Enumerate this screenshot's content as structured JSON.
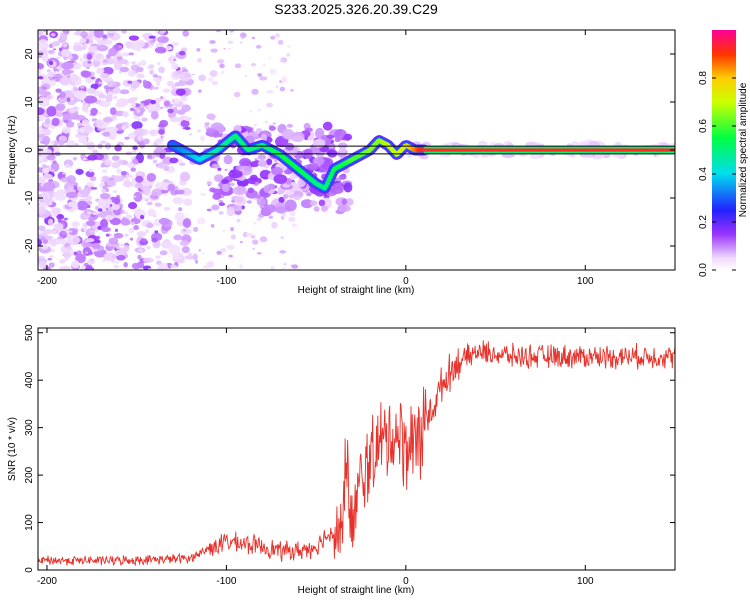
{
  "title": "S233.2025.326.20.39.C29",
  "chart_data": [
    {
      "type": "heatmap",
      "title": "S233.2025.326.20.39.C29",
      "xlabel": "Height of straight line (km)",
      "ylabel": "Frequency (Hz)",
      "xlim": [
        -205,
        150
      ],
      "ylim": [
        -25,
        25
      ],
      "xticks": [
        -200,
        -100,
        0,
        100
      ],
      "yticks": [
        -20,
        -10,
        0,
        10,
        20
      ],
      "colorbar": {
        "label": "Normalized spectral amplitude",
        "range": [
          0.0,
          1.0
        ],
        "ticks": [
          0.0,
          0.2,
          0.4,
          0.6,
          0.8
        ],
        "tick_labels": [
          "0.0",
          "0.2",
          "0.4",
          "0.6",
          "0.8"
        ]
      },
      "ridge": {
        "description": "dominant frequency vs height",
        "x": [
          -130,
          -115,
          -105,
          -95,
          -88,
          -80,
          -70,
          -60,
          -50,
          -45,
          -40,
          -35,
          -30,
          -25,
          -20,
          -15,
          -10,
          -5,
          0,
          5,
          10,
          20,
          40,
          60,
          80,
          100,
          120,
          150
        ],
        "y": [
          1,
          -2,
          0,
          3,
          0,
          1,
          -1,
          -4,
          -7,
          -8,
          -4,
          -3,
          -2,
          -1,
          0,
          2,
          1,
          -1,
          1,
          0,
          0,
          0,
          0,
          0,
          0,
          0,
          0,
          0
        ],
        "amplitude": [
          0.3,
          0.4,
          0.45,
          0.5,
          0.5,
          0.5,
          0.55,
          0.55,
          0.5,
          0.5,
          0.55,
          0.55,
          0.6,
          0.6,
          0.65,
          0.65,
          0.7,
          0.7,
          0.75,
          0.85,
          0.95,
          0.95,
          0.95,
          0.95,
          0.95,
          0.95,
          0.95,
          0.95
        ]
      }
    },
    {
      "type": "line",
      "xlabel": "Height of straight line (km)",
      "ylabel": "SNR (10 * v/v)",
      "xlim": [
        -205,
        150
      ],
      "ylim": [
        0,
        510
      ],
      "xticks": [
        -200,
        -100,
        0,
        100
      ],
      "yticks": [
        0,
        100,
        200,
        300,
        400,
        500
      ],
      "series": [
        {
          "name": "SNR",
          "color": "#e8312a",
          "x": [
            -205,
            -180,
            -160,
            -140,
            -120,
            -110,
            -100,
            -90,
            -80,
            -70,
            -60,
            -50,
            -45,
            -40,
            -35,
            -32,
            -30,
            -28,
            -25,
            -20,
            -15,
            -10,
            -5,
            0,
            5,
            10,
            15,
            20,
            25,
            30,
            40,
            50,
            60,
            80,
            100,
            120,
            150
          ],
          "y": [
            20,
            20,
            20,
            22,
            25,
            45,
            60,
            55,
            50,
            40,
            40,
            50,
            70,
            80,
            90,
            200,
            90,
            130,
            180,
            240,
            260,
            280,
            290,
            260,
            280,
            300,
            340,
            390,
            420,
            440,
            460,
            455,
            450,
            450,
            450,
            450,
            450
          ]
        }
      ]
    }
  ]
}
